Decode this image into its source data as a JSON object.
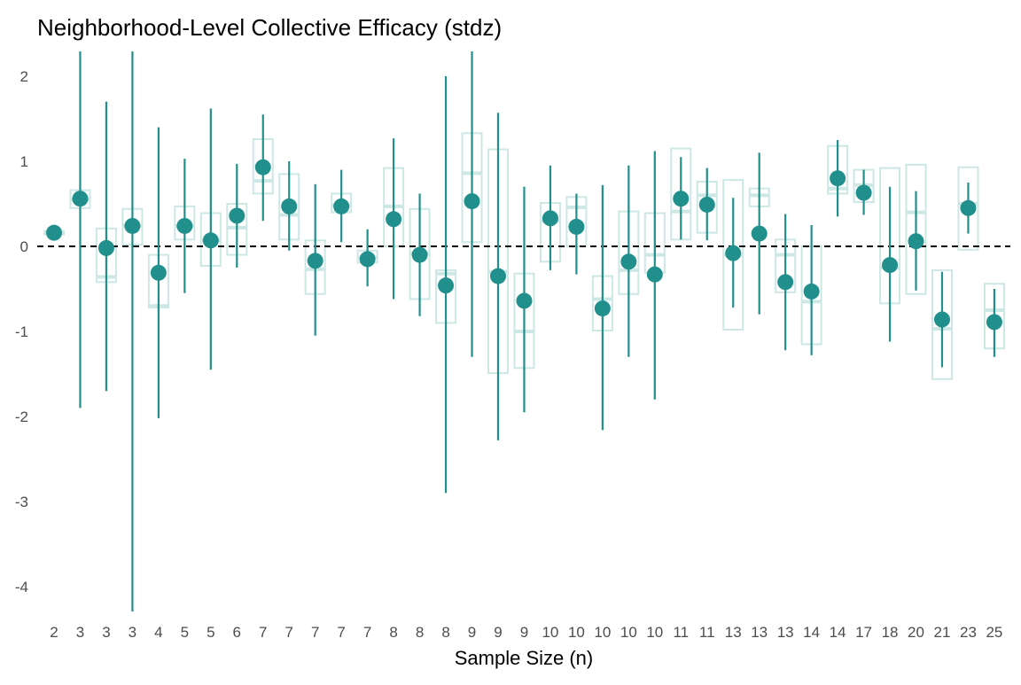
{
  "chart_data": {
    "type": "boxplot-with-mean-ci",
    "title": "Neighborhood-Level Collective Efficacy (stdz)",
    "xlabel": "Sample Size (n)",
    "ylabel": "",
    "ylim": [
      -4.35,
      2.35
    ],
    "yticks": [
      2,
      1,
      0,
      -1,
      -2,
      -3,
      -4
    ],
    "reference_line": 0,
    "grid": false,
    "colors": {
      "point": "#21908C",
      "box": "#CDE7E5",
      "ref": "#000000",
      "text": "#4D4D4D"
    },
    "categories": [
      "2",
      "3",
      "3",
      "3",
      "4",
      "5",
      "5",
      "6",
      "7",
      "7",
      "7",
      "7",
      "7",
      "8",
      "8",
      "8",
      "9",
      "9",
      "9",
      "10",
      "10",
      "10",
      "10",
      "10",
      "11",
      "11",
      "13",
      "13",
      "13",
      "14",
      "14",
      "17",
      "18",
      "20",
      "21",
      "23",
      "25"
    ],
    "means": [
      0.16,
      0.56,
      -0.02,
      0.24,
      -0.31,
      0.24,
      0.07,
      0.36,
      0.93,
      0.47,
      -0.17,
      0.47,
      -0.15,
      0.32,
      -0.1,
      -0.46,
      0.53,
      -0.35,
      -0.64,
      0.33,
      0.23,
      -0.73,
      -0.18,
      -0.33,
      0.56,
      0.49,
      -0.08,
      0.15,
      -0.42,
      -0.53,
      0.8,
      0.63,
      -0.22,
      0.06,
      -0.86,
      0.45,
      -0.89
    ],
    "ci_lower": [
      0.16,
      -1.9,
      -1.7,
      -4.4,
      -2.02,
      -0.55,
      -1.45,
      -0.25,
      0.3,
      -0.05,
      -1.05,
      0.05,
      -0.47,
      -0.62,
      -0.82,
      -2.9,
      -1.3,
      -2.28,
      -1.95,
      -0.28,
      -0.33,
      -2.16,
      -1.3,
      -1.8,
      0.08,
      0.07,
      -0.72,
      -0.8,
      -1.22,
      -1.28,
      0.35,
      0.37,
      -1.12,
      -0.52,
      -1.42,
      0.15,
      -1.3
    ],
    "ci_upper": [
      0.16,
      3.0,
      1.7,
      4.8,
      1.4,
      1.03,
      1.62,
      0.97,
      1.55,
      1.0,
      0.73,
      0.9,
      0.2,
      1.27,
      0.62,
      2.0,
      3.0,
      1.57,
      0.7,
      0.95,
      0.62,
      0.72,
      0.95,
      1.12,
      1.05,
      0.92,
      0.57,
      1.1,
      0.38,
      0.25,
      1.25,
      0.9,
      0.7,
      0.65,
      -0.3,
      0.75,
      -0.5
    ],
    "box_q1": [
      0.14,
      0.45,
      -0.42,
      0.02,
      -0.72,
      0.08,
      -0.23,
      -0.1,
      0.62,
      0.08,
      -0.56,
      0.4,
      -0.19,
      0.0,
      -0.62,
      -0.9,
      0.05,
      -1.49,
      -1.43,
      -0.18,
      0.0,
      -0.99,
      -0.56,
      -0.31,
      0.08,
      0.16,
      -0.98,
      0.47,
      -0.54,
      -1.15,
      0.62,
      0.52,
      -0.67,
      -0.56,
      -1.56,
      -0.04,
      -1.2
    ],
    "box_median": [
      0.16,
      0.55,
      -0.36,
      0.24,
      -0.7,
      0.24,
      0.07,
      0.22,
      0.77,
      0.37,
      -0.27,
      0.48,
      -0.13,
      0.47,
      -0.08,
      -0.32,
      0.86,
      -0.3,
      -1.0,
      0.3,
      0.46,
      -0.62,
      -0.28,
      -0.1,
      0.41,
      0.6,
      -0.1,
      0.6,
      -0.1,
      -0.65,
      0.68,
      0.72,
      -0.25,
      0.4,
      -0.97,
      0.5,
      -0.75
    ],
    "box_q3": [
      0.18,
      0.66,
      0.21,
      0.44,
      -0.1,
      0.47,
      0.39,
      0.5,
      1.26,
      0.85,
      0.07,
      0.62,
      -0.05,
      0.92,
      0.44,
      -0.28,
      1.33,
      1.14,
      -0.32,
      0.51,
      0.58,
      -0.35,
      0.41,
      0.39,
      1.15,
      0.76,
      0.78,
      0.68,
      0.08,
      0.0,
      1.18,
      0.9,
      0.92,
      0.96,
      -0.28,
      0.93,
      -0.44
    ]
  }
}
